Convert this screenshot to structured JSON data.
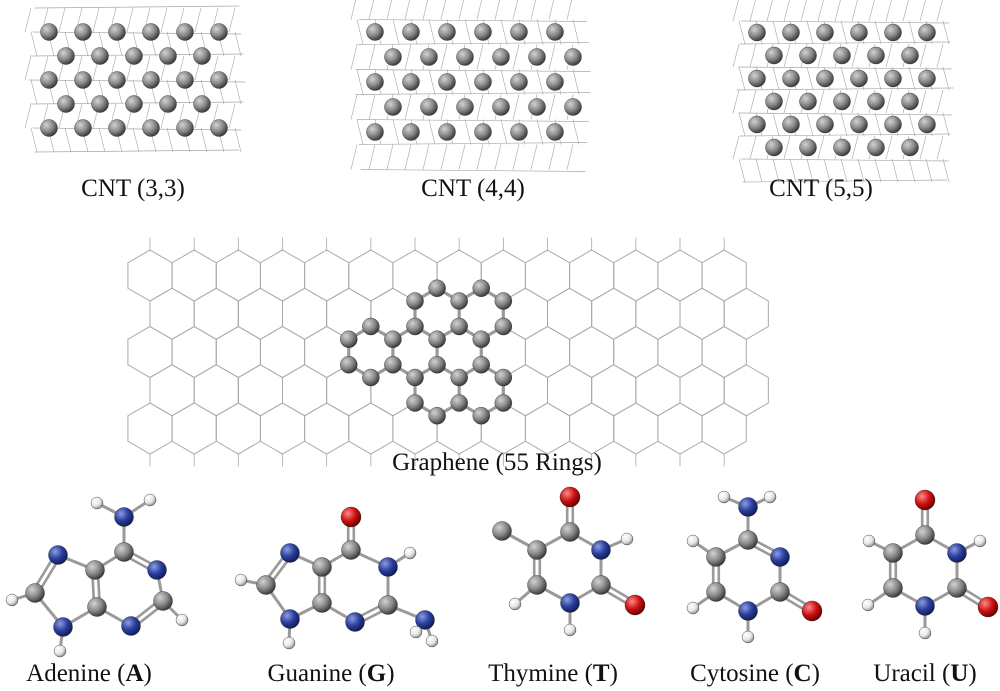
{
  "colors": {
    "carbon": "#8a8a8a",
    "carbon_dark": "#3a3a3a",
    "carbon_light": "#d2d2d2",
    "nitrogen": "#2a3f9e",
    "nitrogen_light": "#8d9be0",
    "oxygen": "#cc1111",
    "oxygen_light": "#ff8a8a",
    "hydrogen": "#e6e6e6",
    "bond": "#9a9a9a",
    "wire": "#a8a8a8"
  },
  "panels": {
    "cnt33": {
      "label": "CNT (3,3)"
    },
    "cnt44": {
      "label": "CNT (4,4)"
    },
    "cnt55": {
      "label": "CNT (5,5)"
    },
    "graphene": {
      "label": "Graphene (55 Rings)"
    }
  },
  "bases": [
    {
      "id": "adenine",
      "name": "Adenine",
      "letter": "A",
      "icon": "adenine-molecule"
    },
    {
      "id": "guanine",
      "name": "Guanine",
      "letter": "G",
      "icon": "guanine-molecule"
    },
    {
      "id": "thymine",
      "name": "Thymine",
      "letter": "T",
      "icon": "thymine-molecule"
    },
    {
      "id": "cytosine",
      "name": "Cytosine",
      "letter": "C",
      "icon": "cytosine-molecule"
    },
    {
      "id": "uracil",
      "name": "Uracil",
      "letter": "U",
      "icon": "uracil-molecule"
    }
  ]
}
